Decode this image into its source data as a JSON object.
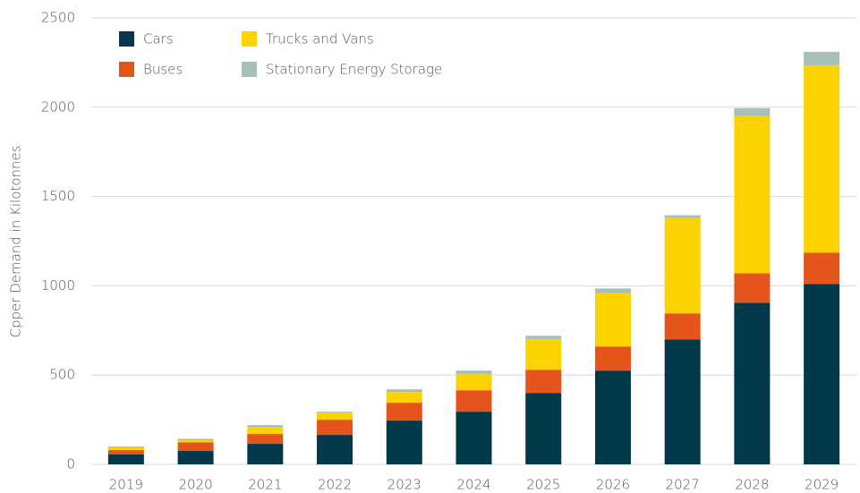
{
  "chart_data": {
    "type": "stacked_bar",
    "y_label": "Cpper Demand in Kilotonnes",
    "categories": [
      "2019",
      "2020",
      "2021",
      "2022",
      "2023",
      "2024",
      "2025",
      "2026",
      "2027",
      "2028",
      "2029"
    ],
    "series": [
      {
        "name": "Cars",
        "color": "#01394a",
        "values": [
          55,
          75,
          115,
          165,
          245,
          295,
          400,
          525,
          700,
          905,
          1010
        ]
      },
      {
        "name": "Buses",
        "color": "#e5541a",
        "values": [
          25,
          48,
          55,
          85,
          100,
          120,
          130,
          135,
          145,
          165,
          175
        ]
      },
      {
        "name": "Trucks and Vans",
        "color": "#fcd200",
        "values": [
          15,
          12,
          40,
          40,
          60,
          90,
          170,
          300,
          535,
          880,
          1050
        ]
      },
      {
        "name": "Stationary Energy Storage",
        "color": "#a6bfb8",
        "values": [
          5,
          8,
          10,
          5,
          15,
          20,
          20,
          25,
          15,
          45,
          75
        ]
      }
    ],
    "ylim": [
      0,
      2500
    ],
    "yticks": [
      0,
      500,
      1000,
      1500,
      2000,
      2500
    ],
    "grid": true
  }
}
